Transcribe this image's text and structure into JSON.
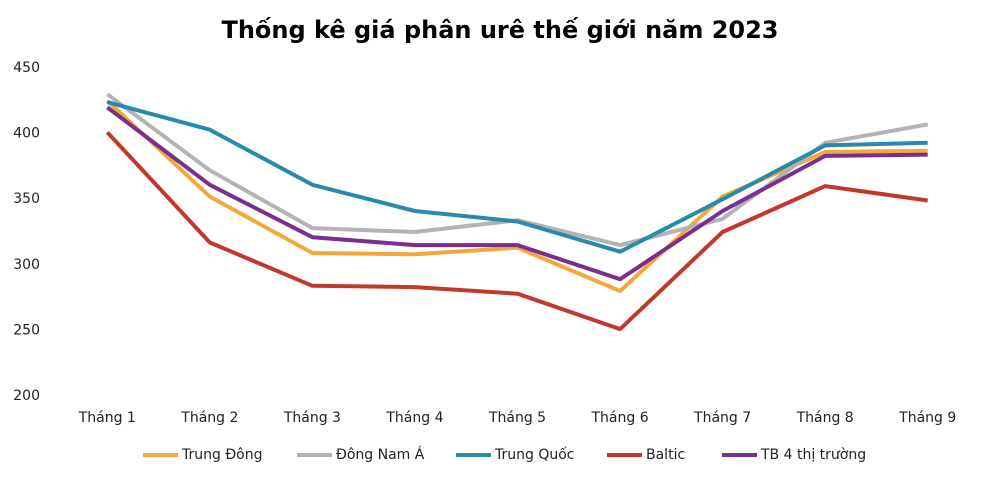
{
  "chart_data": {
    "type": "line",
    "title": "Thống kê giá phân urê thế giới năm 2023",
    "categories": [
      "Tháng 1",
      "Tháng 2",
      "Tháng 3",
      "Tháng 4",
      "Tháng 5",
      "Tháng 6",
      "Tháng 7",
      "Tháng 8",
      "Tháng 9"
    ],
    "series": [
      {
        "name": "Trung Đông",
        "color": "#f2a93b",
        "values": [
          425,
          352,
          309,
          308,
          313,
          280,
          352,
          386,
          387
        ]
      },
      {
        "name": "Đông Nam Á",
        "color": "#b3b3b3",
        "values": [
          430,
          372,
          328,
          325,
          334,
          315,
          335,
          393,
          407
        ]
      },
      {
        "name": "Trung Quốc",
        "color": "#2a8aab",
        "values": [
          424,
          403,
          361,
          341,
          333,
          310,
          350,
          391,
          393
        ]
      },
      {
        "name": "Baltic",
        "color": "#bf3a2d",
        "values": [
          401,
          317,
          284,
          283,
          278,
          251,
          325,
          360,
          349
        ]
      },
      {
        "name": "TB 4 thị trường",
        "color": "#7a2f8f",
        "values": [
          420,
          361,
          321,
          315,
          315,
          289,
          341,
          383,
          384
        ]
      }
    ],
    "ylim": [
      200,
      450
    ],
    "yticks": [
      200,
      250,
      300,
      350,
      400,
      450
    ],
    "grid": false
  }
}
